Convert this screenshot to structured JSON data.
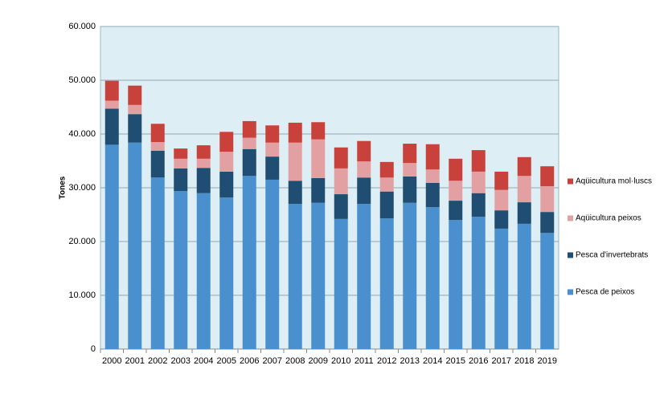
{
  "chart_data": {
    "type": "stacked_bar",
    "y_label": "Tones",
    "categories": [
      "2000",
      "2001",
      "2002",
      "2003",
      "2004",
      "2005",
      "2006",
      "2007",
      "2008",
      "2009",
      "2010",
      "2011",
      "2012",
      "2013",
      "2014",
      "2015",
      "2016",
      "2017",
      "2018",
      "2019"
    ],
    "series": [
      {
        "name": "Pesca de peixos",
        "color": "#4a8fce",
        "values": [
          38000,
          38400,
          31900,
          29400,
          29000,
          28200,
          32200,
          31500,
          27000,
          27200,
          24200,
          27000,
          24300,
          27200,
          26400,
          24000,
          24600,
          22400,
          23300,
          21600
        ]
      },
      {
        "name": "Pesca d'invertebrats",
        "color": "#1f4e72",
        "values": [
          6700,
          5300,
          5000,
          4200,
          4700,
          4800,
          5000,
          4300,
          4300,
          4600,
          4600,
          4900,
          5000,
          4900,
          4500,
          3600,
          4400,
          3400,
          4000,
          3900
        ]
      },
      {
        "name": "Aqüicultura peixos",
        "color": "#e3a0a3",
        "values": [
          1500,
          1700,
          1600,
          1800,
          1700,
          3700,
          2100,
          2600,
          7100,
          7200,
          4800,
          3000,
          2600,
          2500,
          2500,
          3700,
          4000,
          3800,
          4900,
          4800
        ]
      },
      {
        "name": "Aqüicultura mol·luscs",
        "color": "#c8413a",
        "values": [
          3700,
          3600,
          3400,
          1900,
          2500,
          3700,
          3100,
          3200,
          3700,
          3200,
          3900,
          3800,
          2900,
          3600,
          4700,
          4100,
          4000,
          3400,
          3500,
          3700
        ]
      }
    ],
    "ylim": [
      0,
      60000
    ],
    "yticks": [
      0,
      {
        "value": 10000,
        "label": "10.000"
      },
      {
        "value": 20000,
        "label": "20.000"
      },
      {
        "value": 30000,
        "label": "30.000"
      },
      {
        "value": 40000,
        "label": "40.000"
      },
      {
        "value": 50000,
        "label": "50.000"
      },
      {
        "value": 60000,
        "label": "60.000"
      }
    ],
    "grid": true,
    "legend": "right"
  }
}
